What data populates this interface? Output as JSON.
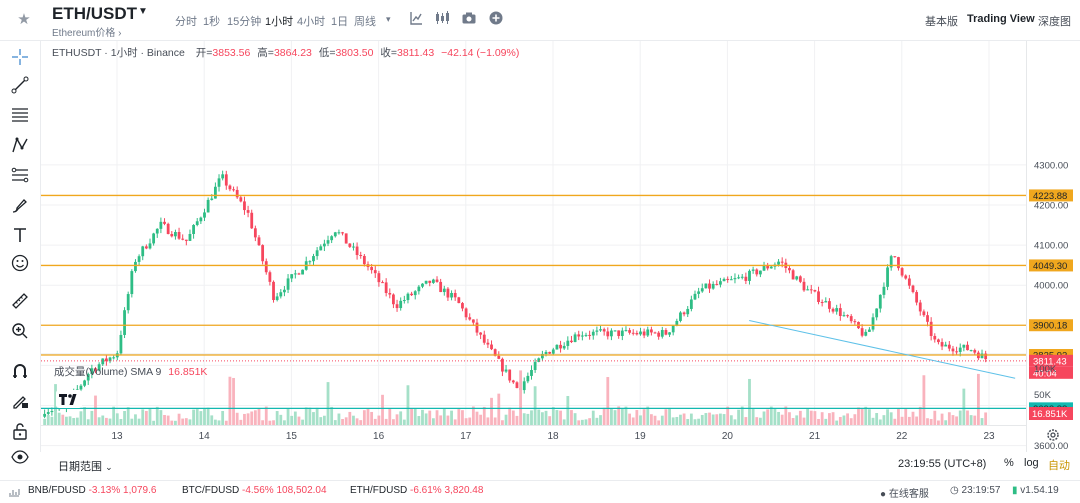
{
  "header": {
    "pair": "ETH/USDT",
    "subtitle": "Ethereum价格 ›",
    "timeframes": [
      "分时",
      "1秒",
      "15分钟",
      "1小时",
      "4小时",
      "1日",
      "周线"
    ],
    "active_timeframe": "1小时",
    "views": [
      "基本版",
      "Trading View",
      "深度图"
    ],
    "active_view": "Trading View"
  },
  "legend": {
    "title": "ETHUSDT · 1小时 · Binance",
    "open_label": "开=",
    "open": "3853.56",
    "high_label": "高=",
    "high": "3864.23",
    "low_label": "低=",
    "low": "3803.50",
    "close_label": "收=",
    "close": "3811.43",
    "change": "−42.14 (−1.09%)"
  },
  "volume_legend": {
    "label": "成交量(Volume) SMA 9",
    "value": "16.851K"
  },
  "price_axis": {
    "ticks": [
      "4300.00",
      "4200.00",
      "4100.00",
      "4000.00",
      "3600.00"
    ],
    "labels": [
      {
        "text": "4223.88",
        "kind": "orange"
      },
      {
        "text": "4049.30",
        "kind": "orange"
      },
      {
        "text": "3900.18",
        "kind": "orange"
      },
      {
        "text": "3825.92",
        "kind": "orange"
      },
      {
        "text": "3811.43",
        "kind": "red"
      },
      {
        "text": "40:04",
        "kind": "red"
      },
      {
        "text": "3692.88",
        "kind": "teal"
      }
    ]
  },
  "volume_axis": {
    "ticks": [
      "100K",
      "50K"
    ],
    "current": "16.851K"
  },
  "time_axis": [
    "13",
    "14",
    "15",
    "16",
    "17",
    "18",
    "19",
    "20",
    "21",
    "22",
    "23"
  ],
  "bottom": {
    "date_range": "日期范围",
    "clock": "23:19:55 (UTC+8)",
    "percent": "%",
    "log": "log",
    "auto": "自动"
  },
  "status_bar": {
    "tickers": [
      {
        "symbol": "BNB/FDUSD",
        "change": "-3.13%",
        "price": "1,079.6"
      },
      {
        "symbol": "BTC/FDUSD",
        "change": "-4.56%",
        "price": "108,502.04"
      },
      {
        "symbol": "ETH/FDUSD",
        "change": "-6.61%",
        "price": "3,820.48"
      }
    ],
    "support": "在线客服",
    "time": "23:19:57",
    "version": "v1.54.19"
  },
  "colors": {
    "up": "#2ebd85",
    "down": "#f6465d",
    "level": "#f0a71e",
    "support": "#13b8b0",
    "trend": "#5ec1e8",
    "accent": "#c99400"
  },
  "chart_data": {
    "type": "candlestick",
    "symbol": "ETHUSDT",
    "interval": "1小时",
    "ylim": [
      3580,
      4320
    ],
    "horizontal_levels": [
      4223.88,
      4049.3,
      3900.18,
      3825.92,
      3692.88
    ],
    "trendline": [
      {
        "day": 20.25,
        "price": 3912
      },
      {
        "day": 23.3,
        "price": 3768
      }
    ],
    "current_price": 3811.43,
    "closes_by_day": [
      {
        "day": 12.4,
        "close": 3690
      },
      {
        "day": 12.7,
        "close": 3790
      },
      {
        "day": 13.0,
        "close": 3830
      },
      {
        "day": 13.2,
        "close": 4060
      },
      {
        "day": 13.5,
        "close": 4150
      },
      {
        "day": 13.8,
        "close": 4110
      },
      {
        "day": 14.2,
        "close": 4270
      },
      {
        "day": 14.5,
        "close": 4180
      },
      {
        "day": 14.8,
        "close": 3970
      },
      {
        "day": 15.1,
        "close": 4040
      },
      {
        "day": 15.5,
        "close": 4140
      },
      {
        "day": 15.9,
        "close": 4040
      },
      {
        "day": 16.2,
        "close": 3950
      },
      {
        "day": 16.6,
        "close": 4010
      },
      {
        "day": 16.9,
        "close": 3960
      },
      {
        "day": 17.2,
        "close": 3860
      },
      {
        "day": 17.6,
        "close": 3740
      },
      {
        "day": 17.9,
        "close": 3830
      },
      {
        "day": 18.3,
        "close": 3880
      },
      {
        "day": 18.8,
        "close": 3880
      },
      {
        "day": 19.3,
        "close": 3880
      },
      {
        "day": 19.7,
        "close": 3990
      },
      {
        "day": 20.2,
        "close": 4020
      },
      {
        "day": 20.6,
        "close": 4060
      },
      {
        "day": 20.9,
        "close": 3990
      },
      {
        "day": 21.3,
        "close": 3930
      },
      {
        "day": 21.6,
        "close": 3870
      },
      {
        "day": 21.9,
        "close": 4080
      },
      {
        "day": 22.4,
        "close": 3850
      },
      {
        "day": 22.8,
        "close": 3840
      },
      {
        "day": 23.0,
        "close": 3811.43
      }
    ]
  }
}
